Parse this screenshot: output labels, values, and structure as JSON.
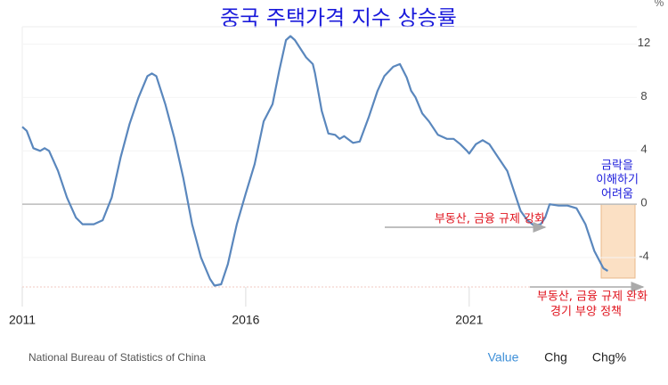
{
  "chart_data": {
    "type": "line",
    "title": "중국 주택가격 지수 상승률",
    "y_unit": "%",
    "source": "National Bureau of Statistics of China",
    "tabs": [
      "Value",
      "Chg",
      "Chg%"
    ],
    "annotations": {
      "box": [
        "금락을",
        "이해하기",
        "어려움"
      ],
      "tighten": "부동산, 금융 규제 강화",
      "ease": [
        "부동산, 금융 규제 완화",
        "경기 부양 정책"
      ]
    },
    "x": [
      2011.0,
      2011.1,
      2011.25,
      2011.4,
      2011.5,
      2011.6,
      2011.8,
      2012.0,
      2012.2,
      2012.35,
      2012.6,
      2012.8,
      2013.0,
      2013.2,
      2013.4,
      2013.6,
      2013.8,
      2013.9,
      2014.0,
      2014.2,
      2014.4,
      2014.6,
      2014.8,
      2015.0,
      2015.2,
      2015.3,
      2015.45,
      2015.6,
      2015.8,
      2016.0,
      2016.2,
      2016.4,
      2016.6,
      2016.75,
      2016.9,
      2017.0,
      2017.1,
      2017.35,
      2017.5,
      2017.55,
      2017.7,
      2017.85,
      2018.0,
      2018.1,
      2018.2,
      2018.4,
      2018.55,
      2018.75,
      2018.95,
      2019.1,
      2019.3,
      2019.45,
      2019.6,
      2019.7,
      2019.8,
      2019.95,
      2020.1,
      2020.3,
      2020.5,
      2020.65,
      2020.8,
      2020.95,
      2021.0,
      2021.15,
      2021.3,
      2021.45,
      2021.65,
      2021.85,
      2022.0,
      2022.15,
      2022.3,
      2022.45,
      2022.6,
      2022.7,
      2022.8,
      2023.0,
      2023.2,
      2023.4,
      2023.6,
      2023.8,
      2024.0,
      2024.1
    ],
    "series": [
      {
        "name": "Value",
        "color": "#5a87bd",
        "values": [
          5.8,
          5.5,
          4.2,
          4.0,
          4.2,
          4.0,
          2.5,
          0.5,
          -1.0,
          -1.5,
          -1.5,
          -1.2,
          0.5,
          3.5,
          6.0,
          8.0,
          9.6,
          9.8,
          9.6,
          7.5,
          5.0,
          2.0,
          -1.5,
          -4.0,
          -5.6,
          -6.1,
          -6.0,
          -4.5,
          -1.5,
          0.8,
          3.0,
          6.2,
          7.5,
          10.0,
          12.3,
          12.6,
          12.3,
          11.0,
          10.5,
          9.8,
          7.0,
          5.3,
          5.2,
          4.9,
          5.1,
          4.6,
          4.7,
          6.5,
          8.5,
          9.6,
          10.3,
          10.5,
          9.5,
          8.5,
          8.0,
          6.8,
          6.2,
          5.2,
          4.9,
          4.9,
          4.5,
          4.0,
          3.8,
          4.5,
          4.8,
          4.5,
          3.5,
          2.5,
          1.0,
          -0.5,
          -1.2,
          -1.6,
          -1.5,
          -1.0,
          0.0,
          -0.1,
          -0.1,
          -0.3,
          -1.5,
          -3.5,
          -4.8,
          -5.0
        ]
      }
    ],
    "xlim": [
      2011,
      2024.75
    ],
    "xticks": [
      2011,
      2016,
      2021
    ],
    "ylim": [
      -6.2,
      13.3
    ],
    "yticks": [
      12,
      8,
      4,
      0,
      -4
    ]
  }
}
